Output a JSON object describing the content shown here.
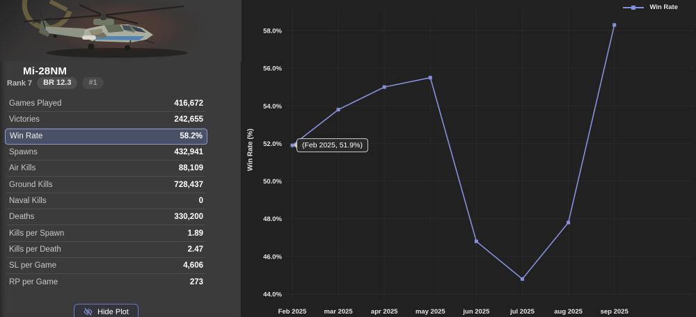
{
  "panel": {
    "title": "Mi-28NM",
    "rank_label": "Rank 7",
    "br_badge": "BR 12.3",
    "position_badge": "#1",
    "stats": [
      {
        "label": "Games Played",
        "value": "416,672",
        "highlight": false
      },
      {
        "label": "Victories",
        "value": "242,655",
        "highlight": false
      },
      {
        "label": "Win Rate",
        "value": "58.2%",
        "highlight": true
      },
      {
        "label": "Spawns",
        "value": "432,941",
        "highlight": false
      },
      {
        "label": "Air Kills",
        "value": "88,109",
        "highlight": false
      },
      {
        "label": "Ground Kills",
        "value": "728,437",
        "highlight": false
      },
      {
        "label": "Naval Kills",
        "value": "0",
        "highlight": false
      },
      {
        "label": "Deaths",
        "value": "330,200",
        "highlight": false
      },
      {
        "label": "Kills per Spawn",
        "value": "1.89",
        "highlight": false
      },
      {
        "label": "Kills per Death",
        "value": "2.47",
        "highlight": false
      },
      {
        "label": "SL per Game",
        "value": "4,606",
        "highlight": false
      },
      {
        "label": "RP per Game",
        "value": "273",
        "highlight": false
      }
    ],
    "hide_plot_button": "Hide Plot"
  },
  "chart_data": {
    "type": "line",
    "x": [
      "Feb 2025",
      "mar 2025",
      "apr 2025",
      "may 2025",
      "jun 2025",
      "jul 2025",
      "aug 2025",
      "sep 2025"
    ],
    "series": [
      {
        "name": "Win Rate",
        "values": [
          51.9,
          53.8,
          55.0,
          55.5,
          46.8,
          44.8,
          47.8,
          58.3
        ]
      }
    ],
    "ylabel": "Win Rate (%)",
    "yticks": [
      "44.0%",
      "46.0%",
      "48.0%",
      "50.0%",
      "52.0%",
      "54.0%",
      "56.0%",
      "58.0%"
    ],
    "ylim": [
      44,
      58
    ],
    "grid": true,
    "legend_position": "top-right",
    "line_color": "#8790da",
    "tooltip": {
      "text": "(Feb 2025, 51.9%)",
      "point_index": 0
    }
  }
}
